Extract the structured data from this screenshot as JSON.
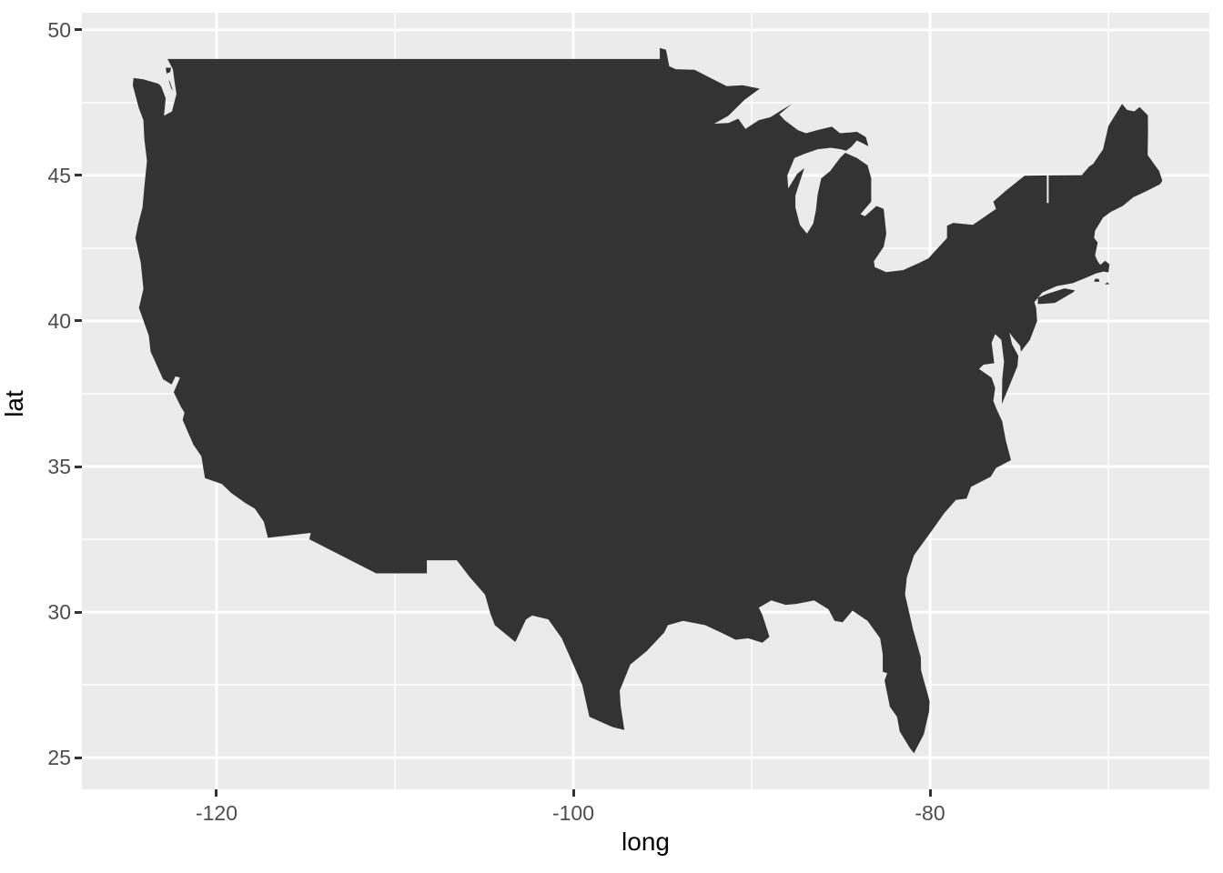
{
  "figure": {
    "xlabel": "long",
    "ylabel": "lat"
  },
  "map_data": {
    "type": "map",
    "title": "",
    "region": "Continental United States silhouette (48 states, no internal borders)",
    "projection": "linear lat/long (equirectangular)",
    "xlabel": "long",
    "ylabel": "lat",
    "xlim": [
      -127.55,
      -64.34
    ],
    "ylim": [
      23.91,
      50.59
    ],
    "x_ticks": [
      -120,
      -100,
      -80
    ],
    "x_tick_labels": [
      "-120",
      "-100",
      "-80"
    ],
    "y_ticks": [
      25,
      30,
      35,
      40,
      45,
      50
    ],
    "y_tick_labels": [
      "25",
      "30",
      "35",
      "40",
      "45",
      "50"
    ],
    "x_minor_gridlines": [
      -110,
      -90,
      -70
    ],
    "y_minor_gridlines": [
      27.5,
      32.5,
      37.5,
      42.5,
      47.5
    ],
    "grid": true,
    "legend": false,
    "colors": {
      "panel_background": "#ebebeb",
      "gridline": "#ffffff",
      "land_fill": "#333333",
      "tick_label": "#4d4d4d",
      "axis_title": "#000000",
      "tick_mark": "#333333",
      "figure_background": "#ffffff"
    },
    "outline_main": [
      [
        -122.75,
        49.0
      ],
      [
        -122.45,
        48.65
      ],
      [
        -122.35,
        48.2
      ],
      [
        -122.25,
        47.8
      ],
      [
        -122.5,
        47.2
      ],
      [
        -122.95,
        47.05
      ],
      [
        -122.85,
        47.65
      ],
      [
        -123.1,
        48.05
      ],
      [
        -123.25,
        48.15
      ],
      [
        -124.1,
        48.3
      ],
      [
        -124.65,
        48.35
      ],
      [
        -124.7,
        48.1
      ],
      [
        -124.35,
        47.3
      ],
      [
        -124.1,
        46.9
      ],
      [
        -124.05,
        46.25
      ],
      [
        -123.9,
        45.5
      ],
      [
        -124.05,
        44.6
      ],
      [
        -124.15,
        43.9
      ],
      [
        -124.4,
        43.3
      ],
      [
        -124.55,
        42.85
      ],
      [
        -124.25,
        42.0
      ],
      [
        -124.1,
        41.1
      ],
      [
        -124.35,
        40.45
      ],
      [
        -123.8,
        39.5
      ],
      [
        -123.7,
        38.95
      ],
      [
        -123.0,
        38.0
      ],
      [
        -122.52,
        37.82
      ],
      [
        -122.3,
        38.1
      ],
      [
        -122.05,
        38.05
      ],
      [
        -122.3,
        37.7
      ],
      [
        -122.4,
        37.55
      ],
      [
        -122.0,
        37.05
      ],
      [
        -121.8,
        36.85
      ],
      [
        -121.9,
        36.6
      ],
      [
        -121.3,
        35.75
      ],
      [
        -120.85,
        35.35
      ],
      [
        -120.65,
        34.6
      ],
      [
        -119.7,
        34.4
      ],
      [
        -119.2,
        34.1
      ],
      [
        -118.4,
        33.75
      ],
      [
        -117.85,
        33.55
      ],
      [
        -117.35,
        33.1
      ],
      [
        -117.12,
        32.55
      ],
      [
        -114.72,
        32.72
      ],
      [
        -114.8,
        32.5
      ],
      [
        -111.05,
        31.33
      ],
      [
        -108.21,
        31.33
      ],
      [
        -108.21,
        31.78
      ],
      [
        -106.53,
        31.78
      ],
      [
        -105.8,
        31.2
      ],
      [
        -104.95,
        30.6
      ],
      [
        -104.65,
        29.95
      ],
      [
        -104.4,
        29.55
      ],
      [
        -103.25,
        28.97
      ],
      [
        -102.65,
        29.75
      ],
      [
        -102.3,
        29.88
      ],
      [
        -101.4,
        29.75
      ],
      [
        -100.65,
        29.1
      ],
      [
        -100.0,
        28.2
      ],
      [
        -99.5,
        27.5
      ],
      [
        -99.1,
        26.4
      ],
      [
        -97.8,
        26.05
      ],
      [
        -97.14,
        25.95
      ],
      [
        -97.35,
        26.8
      ],
      [
        -97.4,
        27.3
      ],
      [
        -96.8,
        28.2
      ],
      [
        -95.9,
        28.65
      ],
      [
        -94.9,
        29.3
      ],
      [
        -94.7,
        29.55
      ],
      [
        -93.85,
        29.7
      ],
      [
        -92.6,
        29.55
      ],
      [
        -91.55,
        29.25
      ],
      [
        -90.9,
        29.05
      ],
      [
        -90.2,
        29.1
      ],
      [
        -89.4,
        28.95
      ],
      [
        -89.0,
        29.15
      ],
      [
        -89.4,
        29.9
      ],
      [
        -89.6,
        30.15
      ],
      [
        -88.9,
        30.4
      ],
      [
        -88.1,
        30.25
      ],
      [
        -87.5,
        30.28
      ],
      [
        -86.5,
        30.4
      ],
      [
        -85.7,
        30.1
      ],
      [
        -85.35,
        29.7
      ],
      [
        -84.9,
        29.65
      ],
      [
        -84.35,
        30.05
      ],
      [
        -83.5,
        29.7
      ],
      [
        -82.8,
        29.1
      ],
      [
        -82.65,
        28.55
      ],
      [
        -82.65,
        27.95
      ],
      [
        -82.4,
        27.9
      ],
      [
        -82.55,
        27.65
      ],
      [
        -82.25,
        26.75
      ],
      [
        -81.85,
        26.4
      ],
      [
        -81.7,
        25.9
      ],
      [
        -81.1,
        25.3
      ],
      [
        -80.9,
        25.15
      ],
      [
        -80.35,
        25.8
      ],
      [
        -80.05,
        26.6
      ],
      [
        -80.03,
        26.95
      ],
      [
        -80.5,
        28.0
      ],
      [
        -80.52,
        28.45
      ],
      [
        -80.95,
        29.4
      ],
      [
        -81.4,
        30.6
      ],
      [
        -81.3,
        31.2
      ],
      [
        -80.9,
        31.95
      ],
      [
        -79.95,
        32.75
      ],
      [
        -79.2,
        33.4
      ],
      [
        -78.55,
        33.85
      ],
      [
        -77.95,
        33.9
      ],
      [
        -77.7,
        34.3
      ],
      [
        -76.6,
        34.65
      ],
      [
        -76.3,
        34.95
      ],
      [
        -75.46,
        35.22
      ],
      [
        -75.75,
        35.9
      ],
      [
        -75.95,
        36.55
      ],
      [
        -76.25,
        36.95
      ],
      [
        -76.45,
        37.25
      ],
      [
        -76.35,
        37.7
      ],
      [
        -76.55,
        38.05
      ],
      [
        -77.25,
        38.35
      ],
      [
        -77.0,
        38.5
      ],
      [
        -76.4,
        38.55
      ],
      [
        -76.55,
        39.25
      ],
      [
        -76.35,
        39.55
      ],
      [
        -76.0,
        39.35
      ],
      [
        -75.85,
        38.6
      ],
      [
        -75.95,
        38.0
      ],
      [
        -75.97,
        37.15
      ],
      [
        -75.6,
        37.7
      ],
      [
        -75.1,
        38.45
      ],
      [
        -75.05,
        38.8
      ],
      [
        -75.4,
        39.2
      ],
      [
        -75.55,
        39.6
      ],
      [
        -75.3,
        39.4
      ],
      [
        -74.95,
        39.15
      ],
      [
        -74.9,
        38.95
      ],
      [
        -74.4,
        39.35
      ],
      [
        -74.0,
        40.0
      ],
      [
        -74.05,
        40.45
      ],
      [
        -74.15,
        40.65
      ],
      [
        -73.7,
        40.98
      ],
      [
        -72.9,
        41.2
      ],
      [
        -72.0,
        41.3
      ],
      [
        -71.4,
        41.45
      ],
      [
        -71.2,
        41.5
      ],
      [
        -70.7,
        41.63
      ],
      [
        -70.28,
        41.7
      ],
      [
        -70.0,
        41.67
      ],
      [
        -69.94,
        41.95
      ],
      [
        -70.18,
        42.07
      ],
      [
        -70.45,
        41.93
      ],
      [
        -70.6,
        42.05
      ],
      [
        -70.75,
        42.25
      ],
      [
        -70.6,
        42.7
      ],
      [
        -70.8,
        42.85
      ],
      [
        -70.75,
        43.1
      ],
      [
        -70.3,
        43.55
      ],
      [
        -69.85,
        43.75
      ],
      [
        -69.2,
        43.95
      ],
      [
        -68.6,
        44.25
      ],
      [
        -67.9,
        44.45
      ],
      [
        -67.1,
        44.7
      ],
      [
        -66.98,
        44.82
      ],
      [
        -67.15,
        45.15
      ],
      [
        -67.8,
        45.7
      ],
      [
        -67.78,
        46.6
      ],
      [
        -67.79,
        47.07
      ],
      [
        -68.25,
        47.35
      ],
      [
        -68.55,
        47.2
      ],
      [
        -68.95,
        47.25
      ],
      [
        -69.23,
        47.46
      ],
      [
        -70.0,
        46.7
      ],
      [
        -70.3,
        45.9
      ],
      [
        -70.85,
        45.4
      ],
      [
        -71.08,
        45.3
      ],
      [
        -71.5,
        45.01
      ],
      [
        -73.35,
        45.0
      ],
      [
        -73.35,
        44.05
      ],
      [
        -73.45,
        44.05
      ],
      [
        -73.45,
        45.0
      ],
      [
        -74.7,
        44.99
      ],
      [
        -75.8,
        44.45
      ],
      [
        -76.45,
        44.1
      ],
      [
        -76.3,
        43.85
      ],
      [
        -77.6,
        43.3
      ],
      [
        -78.7,
        43.37
      ],
      [
        -79.05,
        43.27
      ],
      [
        -79.05,
        42.85
      ],
      [
        -80.1,
        42.15
      ],
      [
        -80.6,
        42.0
      ],
      [
        -81.5,
        41.75
      ],
      [
        -82.45,
        41.68
      ],
      [
        -83.1,
        41.85
      ],
      [
        -83.15,
        42.05
      ],
      [
        -82.6,
        42.55
      ],
      [
        -82.45,
        43.0
      ],
      [
        -82.6,
        43.85
      ],
      [
        -83.0,
        43.95
      ],
      [
        -83.65,
        43.6
      ],
      [
        -83.9,
        43.67
      ],
      [
        -83.3,
        44.1
      ],
      [
        -83.3,
        44.9
      ],
      [
        -83.5,
        45.35
      ],
      [
        -84.1,
        45.6
      ],
      [
        -84.75,
        45.78
      ],
      [
        -85.05,
        45.6
      ],
      [
        -85.6,
        45.15
      ],
      [
        -86.1,
        44.9
      ],
      [
        -86.3,
        44.35
      ],
      [
        -86.4,
        43.8
      ],
      [
        -86.55,
        43.35
      ],
      [
        -86.9,
        43.0
      ],
      [
        -87.3,
        43.3
      ],
      [
        -87.55,
        43.9
      ],
      [
        -87.55,
        44.3
      ],
      [
        -87.4,
        44.6
      ],
      [
        -87.05,
        45.25
      ],
      [
        -87.45,
        45.05
      ],
      [
        -87.95,
        44.55
      ],
      [
        -88.0,
        45.0
      ],
      [
        -87.6,
        45.6
      ],
      [
        -87.0,
        45.75
      ],
      [
        -86.3,
        45.9
      ],
      [
        -85.55,
        45.95
      ],
      [
        -85.0,
        45.9
      ],
      [
        -84.7,
        45.85
      ],
      [
        -84.4,
        45.99
      ],
      [
        -84.1,
        46.2
      ],
      [
        -83.75,
        46.1
      ],
      [
        -83.45,
        46.0
      ],
      [
        -83.6,
        46.32
      ],
      [
        -84.1,
        46.5
      ],
      [
        -84.45,
        46.48
      ],
      [
        -85.05,
        46.45
      ],
      [
        -85.5,
        46.68
      ],
      [
        -86.35,
        46.55
      ],
      [
        -86.95,
        46.45
      ],
      [
        -87.4,
        46.55
      ],
      [
        -88.15,
        46.9
      ],
      [
        -88.45,
        47.1
      ],
      [
        -87.75,
        47.45
      ],
      [
        -88.3,
        47.25
      ],
      [
        -88.95,
        47.0
      ],
      [
        -89.6,
        46.9
      ],
      [
        -90.35,
        46.6
      ],
      [
        -90.75,
        46.95
      ],
      [
        -91.3,
        46.8
      ],
      [
        -92.1,
        46.78
      ],
      [
        -91.3,
        47.05
      ],
      [
        -90.4,
        47.6
      ],
      [
        -89.55,
        47.98
      ],
      [
        -90.5,
        48.1
      ],
      [
        -91.4,
        48.07
      ],
      [
        -92.3,
        48.35
      ],
      [
        -93.2,
        48.63
      ],
      [
        -94.25,
        48.65
      ],
      [
        -94.62,
        48.75
      ],
      [
        -94.8,
        49.32
      ],
      [
        -95.15,
        49.38
      ],
      [
        -95.15,
        49.0
      ],
      [
        -122.75,
        49.0
      ]
    ],
    "islands": [
      {
        "name": "long-island",
        "points": [
          [
            -73.95,
            40.58
          ],
          [
            -73.0,
            40.62
          ],
          [
            -72.0,
            40.98
          ],
          [
            -71.87,
            41.05
          ],
          [
            -72.45,
            41.12
          ],
          [
            -73.45,
            40.93
          ],
          [
            -73.95,
            40.8
          ]
        ]
      },
      {
        "name": "marthas-vineyard",
        "points": [
          [
            -70.8,
            41.35
          ],
          [
            -70.5,
            41.35
          ],
          [
            -70.55,
            41.45
          ],
          [
            -70.75,
            41.45
          ]
        ]
      },
      {
        "name": "nantucket",
        "points": [
          [
            -70.2,
            41.26
          ],
          [
            -69.95,
            41.26
          ],
          [
            -70.05,
            41.33
          ]
        ]
      },
      {
        "name": "san-juan-island",
        "points": [
          [
            -122.85,
            48.7
          ],
          [
            -122.55,
            48.7
          ],
          [
            -122.6,
            48.55
          ],
          [
            -122.8,
            48.5
          ]
        ]
      },
      {
        "name": "whidbey-island",
        "points": [
          [
            -122.7,
            48.3
          ],
          [
            -122.55,
            48.0
          ],
          [
            -122.45,
            47.9
          ],
          [
            -122.6,
            48.2
          ]
        ]
      }
    ]
  }
}
